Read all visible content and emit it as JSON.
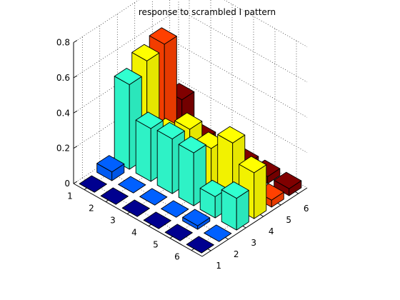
{
  "chart_data": {
    "type": "bar3",
    "title": "response to scrambled I pattern",
    "x_ticks": [
      "1",
      "2",
      "3",
      "4",
      "5",
      "6"
    ],
    "y_ticks": [
      "1",
      "2",
      "3",
      "4",
      "5",
      "6"
    ],
    "z_ticks": [
      "0",
      "0.2",
      "0.4",
      "0.6",
      "0.8"
    ],
    "zlim": [
      0,
      0.8
    ],
    "grid": true,
    "colormap": "jet",
    "values": [
      [
        0.0,
        0.05,
        0.48,
        0.55,
        0.58,
        0.2
      ],
      [
        0.0,
        0.0,
        0.3,
        0.2,
        0.06,
        0.04
      ],
      [
        0.0,
        0.0,
        0.31,
        0.3,
        0.1,
        0.04
      ],
      [
        0.0,
        0.0,
        0.3,
        0.26,
        0.09,
        0.04
      ],
      [
        0.0,
        0.02,
        0.12,
        0.36,
        0.07,
        0.04
      ],
      [
        0.0,
        0.0,
        0.18,
        0.26,
        0.04,
        0.04
      ]
    ],
    "colors": [
      "#00008f",
      "#0060ff",
      "#30ffd0",
      "#ffff00",
      "#ff4000",
      "#800000"
    ]
  }
}
